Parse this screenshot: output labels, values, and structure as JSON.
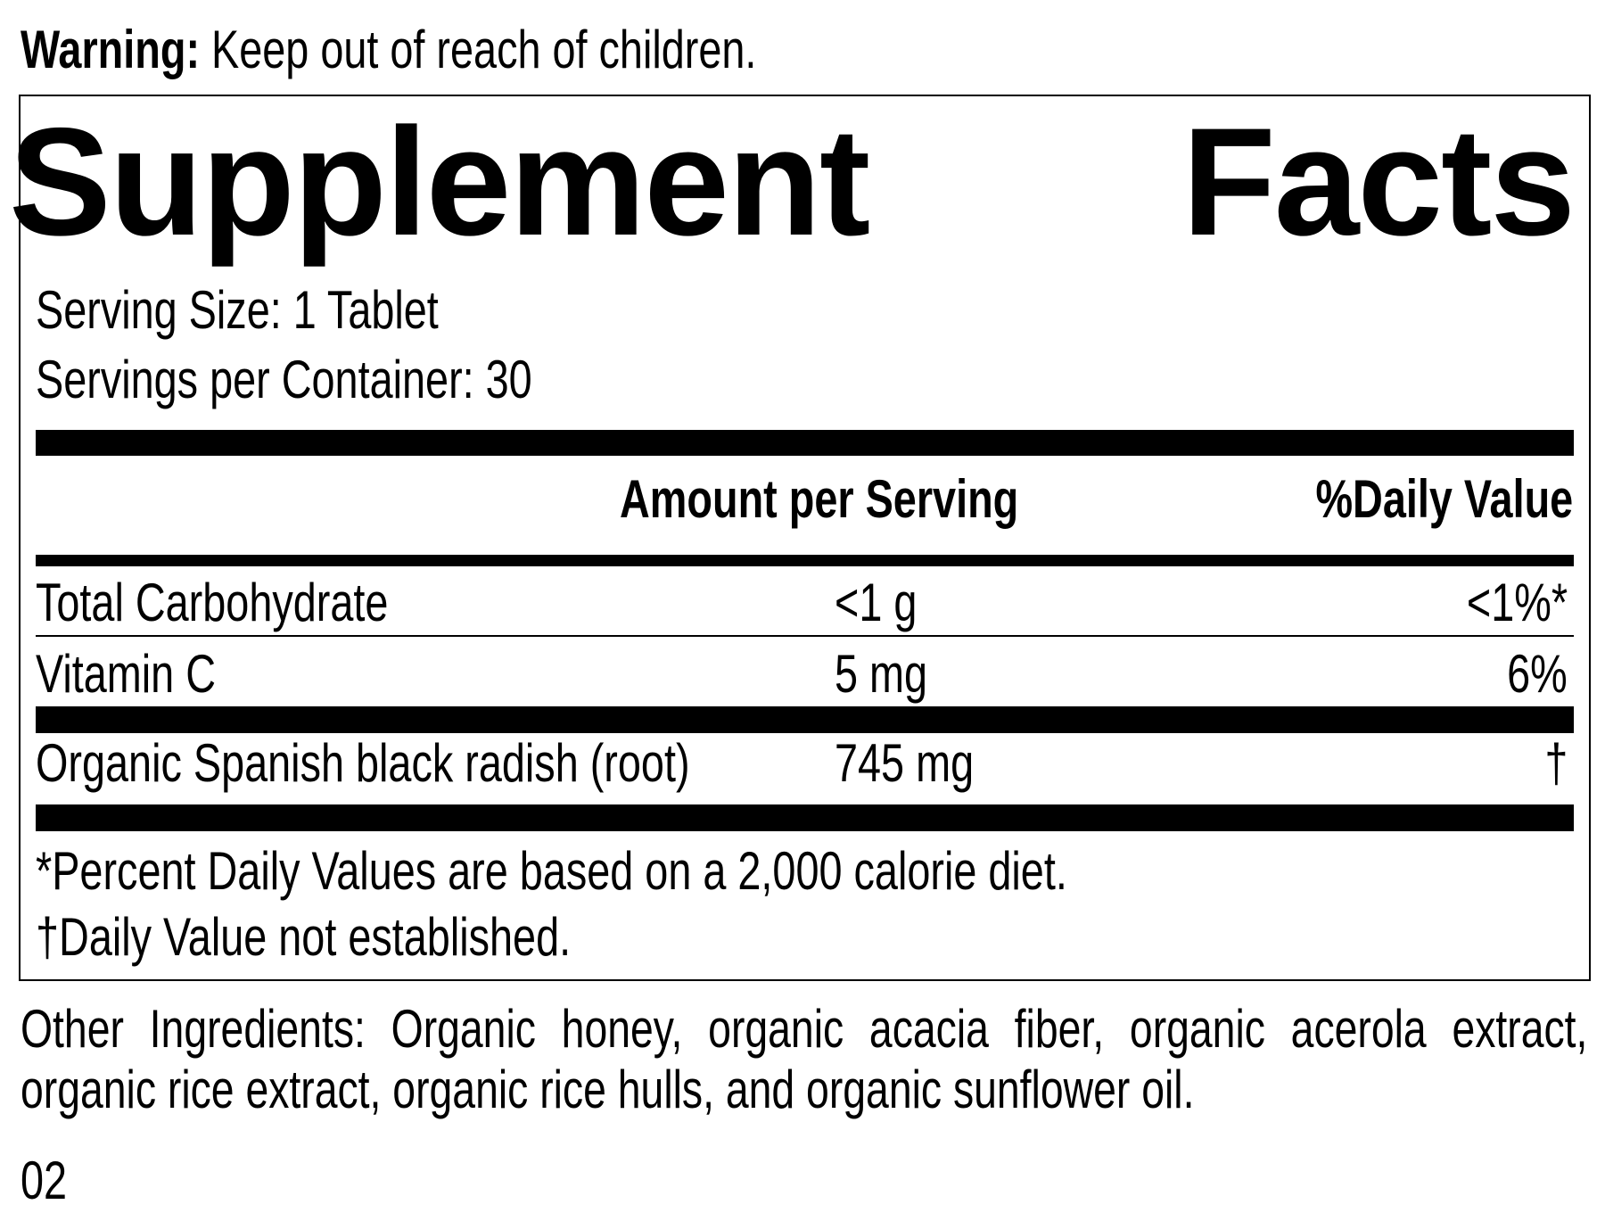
{
  "warning": {
    "label": "Warning:",
    "text": "Keep out of reach of children."
  },
  "title": {
    "word1": "Supplement",
    "word2": "Facts"
  },
  "serving_size": "Serving Size: 1 Tablet",
  "servings_per_container": "Servings per Container: 30",
  "table": {
    "headers": {
      "amount": "Amount per Serving",
      "daily_value": "%Daily Value"
    },
    "rows": [
      {
        "name": "Total Carbohydrate",
        "amount": "<1 g",
        "dv": "<1%*"
      },
      {
        "name": "Vitamin C",
        "amount": "5 mg",
        "dv": "6%"
      },
      {
        "name": "Organic Spanish black radish (root)",
        "amount": "745 mg",
        "dv": "†"
      }
    ]
  },
  "footnotes": [
    "*Percent Daily Values are based on a 2,000 calorie diet.",
    "†Daily Value not established."
  ],
  "other_ingredients": "Other Ingredients: Organic honey, organic acacia fiber, organic acerola extract, organic rice extract, organic rice hulls, and organic sunflower oil.",
  "code": "02"
}
